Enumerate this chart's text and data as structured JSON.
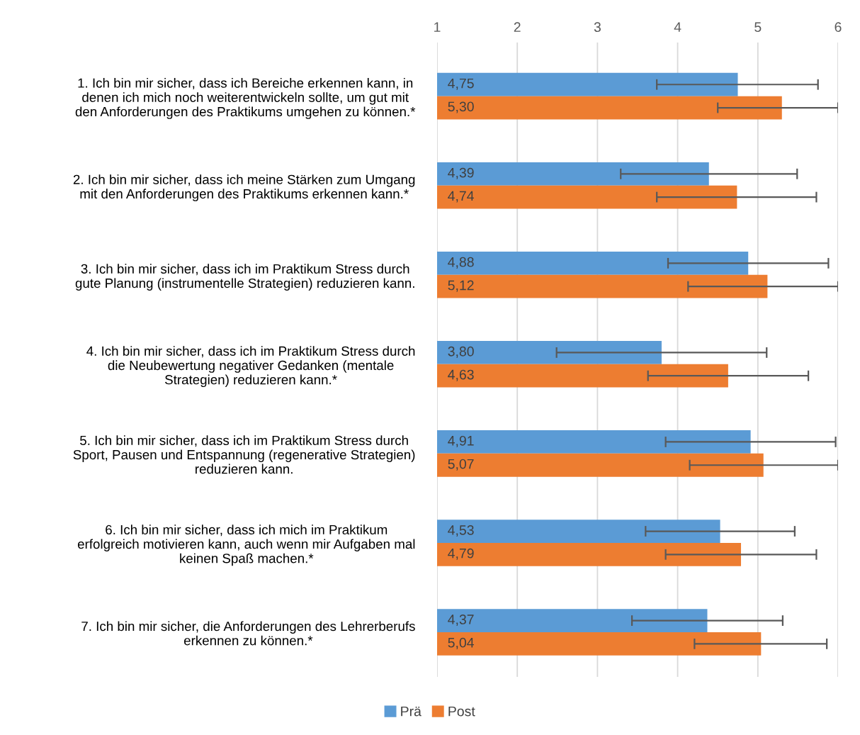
{
  "chart_data": {
    "type": "bar",
    "orientation": "horizontal",
    "categories": [
      "1. Ich bin mir sicher, dass ich Bereiche erkennen kann, in\ndenen ich mich noch weiterentwickeln sollte, um gut mit\nden Anforderungen des Praktikums umgehen zu können.*",
      "2. Ich bin mir sicher, dass ich meine Stärken zum Umgang\nmit den Anforderungen des Praktikums erkennen kann.*",
      "3. Ich bin mir sicher, dass ich im Praktikum Stress durch\ngute Planung (instrumentelle Strategien) reduzieren kann.",
      "4. Ich bin mir sicher, dass ich im Praktikum Stress durch\ndie Neubewertung negativer Gedanken (mentale\nStrategien) reduzieren kann.*",
      "5. Ich bin mir sicher, dass ich im Praktikum Stress durch\nSport, Pausen und Entspannung (regenerative Strategien)\nreduzieren kann.",
      "6. Ich bin mir sicher, dass ich mich im Praktikum\nerfolgreich motivieren kann, auch wenn mir Aufgaben mal\nkeinen Spaß machen.*",
      "7. Ich bin mir sicher, die Anforderungen des Lehrerberufs\nerkennen zu können.*"
    ],
    "series": [
      {
        "name": "Prä",
        "color": "#5b9bd5",
        "values": [
          4.75,
          4.39,
          4.88,
          3.8,
          4.91,
          4.53,
          4.37
        ],
        "value_labels": [
          "4,75",
          "4,39",
          "4,88",
          "3,80",
          "4,91",
          "4,53",
          "4,37"
        ],
        "errors": [
          [
            3.74,
            5.75
          ],
          [
            3.29,
            5.49
          ],
          [
            3.88,
            5.88
          ],
          [
            2.49,
            5.11
          ],
          [
            3.85,
            5.97
          ],
          [
            3.6,
            5.46
          ],
          [
            3.43,
            5.31
          ]
        ]
      },
      {
        "name": "Post",
        "color": "#ed7d31",
        "values": [
          5.3,
          4.74,
          5.12,
          4.63,
          5.07,
          4.79,
          5.04
        ],
        "value_labels": [
          "5,30",
          "4,74",
          "5,12",
          "4,63",
          "5,07",
          "4,79",
          "5,04"
        ],
        "errors": [
          [
            4.5,
            6.0
          ],
          [
            3.74,
            5.73
          ],
          [
            4.13,
            6.0
          ],
          [
            3.63,
            5.63
          ],
          [
            4.15,
            6.0
          ],
          [
            3.85,
            5.73
          ],
          [
            4.21,
            5.86
          ]
        ]
      }
    ],
    "xlim": [
      1,
      6
    ],
    "xticks": [
      1,
      2,
      3,
      4,
      5,
      6
    ],
    "grid": "x",
    "legend": "bottom"
  }
}
